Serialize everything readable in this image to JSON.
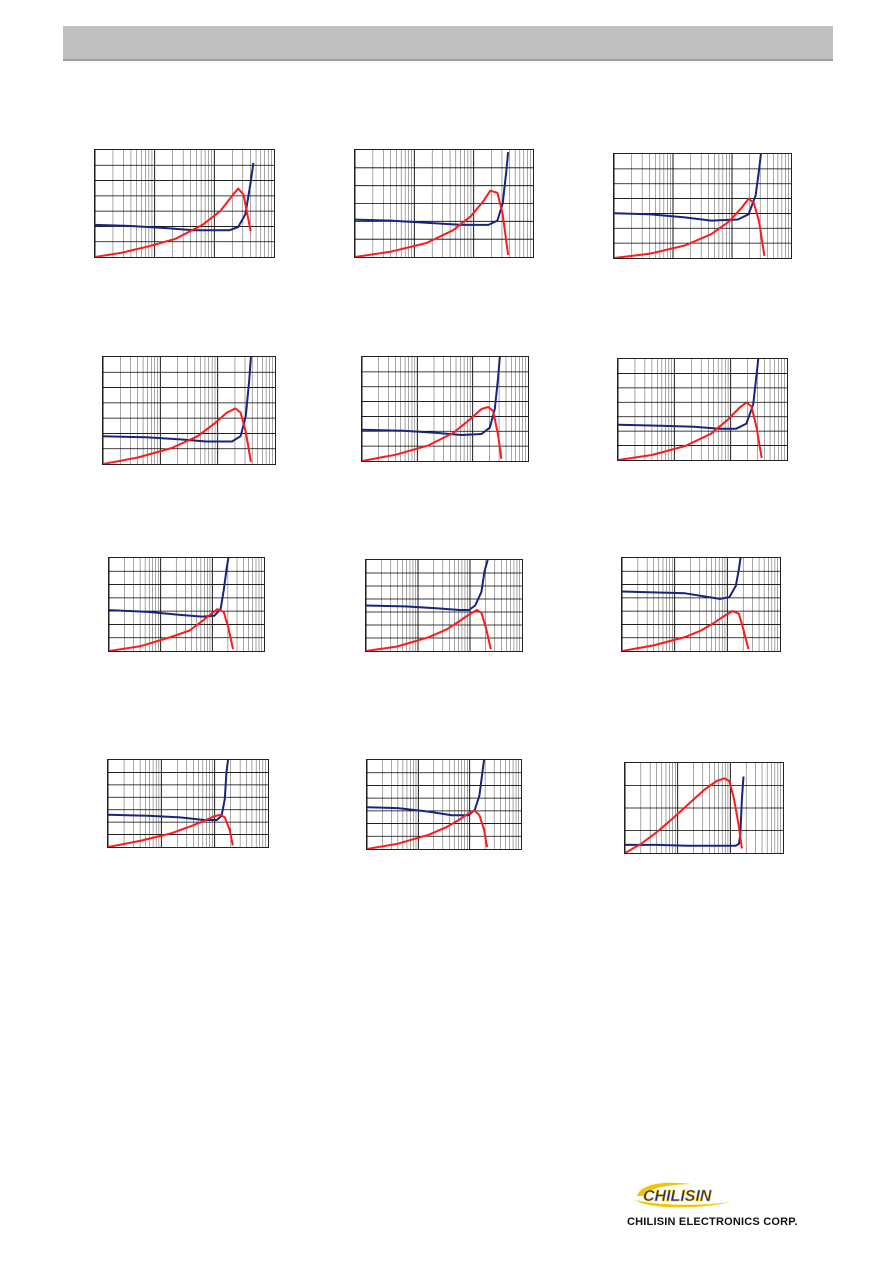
{
  "header": {
    "title": ""
  },
  "company": {
    "name": "CHILISIN ELECTRONICS CORP.",
    "logo_word": "CHILISIN"
  },
  "colors": {
    "impedance_curve": "#1a237e",
    "q_curve": "#ff1a1a",
    "grid": "#000000",
    "header": "#c0c0c0",
    "logo_blue": "#1b2e8f",
    "logo_yellow": "#f5c400"
  },
  "chart_data": [
    {
      "type": "line",
      "xscale": "log",
      "xlim": [
        0,
        1
      ],
      "ylim": [
        0,
        1
      ],
      "grid": true,
      "legend": "none",
      "title": "",
      "xlabel": "",
      "ylabel": "",
      "series": [
        {
          "name": "",
          "color": "#1a237e",
          "x": [
            0,
            0.2,
            0.4,
            0.55,
            0.75,
            0.8,
            0.84,
            0.87,
            0.885
          ],
          "y": [
            0.3,
            0.29,
            0.27,
            0.25,
            0.25,
            0.28,
            0.4,
            0.7,
            0.88
          ]
        },
        {
          "name": "",
          "color": "#ff1a1a",
          "x": [
            0,
            0.15,
            0.3,
            0.45,
            0.6,
            0.7,
            0.78,
            0.8,
            0.83,
            0.87
          ],
          "y": [
            0,
            0.04,
            0.1,
            0.17,
            0.3,
            0.43,
            0.6,
            0.64,
            0.58,
            0.24
          ]
        }
      ]
    },
    {
      "type": "line",
      "xscale": "log",
      "xlim": [
        0,
        1
      ],
      "ylim": [
        0,
        1
      ],
      "grid": true,
      "legend": "none",
      "title": "",
      "xlabel": "",
      "ylabel": "",
      "series": [
        {
          "name": "",
          "color": "#1a237e",
          "x": [
            0,
            0.2,
            0.4,
            0.6,
            0.75,
            0.8,
            0.83,
            0.85,
            0.86
          ],
          "y": [
            0.35,
            0.34,
            0.32,
            0.3,
            0.3,
            0.34,
            0.5,
            0.8,
            0.98
          ]
        },
        {
          "name": "",
          "color": "#ff1a1a",
          "x": [
            0,
            0.2,
            0.4,
            0.55,
            0.65,
            0.72,
            0.76,
            0.8,
            0.83,
            0.86
          ],
          "y": [
            0,
            0.05,
            0.13,
            0.25,
            0.38,
            0.52,
            0.62,
            0.6,
            0.4,
            0.02
          ]
        }
      ]
    },
    {
      "type": "line",
      "xscale": "log",
      "xlim": [
        0,
        1
      ],
      "ylim": [
        0,
        1
      ],
      "grid": true,
      "legend": "none",
      "title": "",
      "xlabel": "",
      "ylabel": "",
      "series": [
        {
          "name": "",
          "color": "#1a237e",
          "x": [
            0,
            0.2,
            0.4,
            0.55,
            0.7,
            0.76,
            0.8,
            0.82,
            0.83
          ],
          "y": [
            0.43,
            0.42,
            0.39,
            0.36,
            0.37,
            0.42,
            0.6,
            0.85,
            1.0
          ]
        },
        {
          "name": "",
          "color": "#ff1a1a",
          "x": [
            0,
            0.2,
            0.4,
            0.55,
            0.65,
            0.72,
            0.76,
            0.79,
            0.82,
            0.85
          ],
          "y": [
            0,
            0.04,
            0.12,
            0.23,
            0.35,
            0.48,
            0.57,
            0.53,
            0.35,
            0.02
          ]
        }
      ]
    },
    {
      "type": "line",
      "xscale": "log",
      "xlim": [
        0,
        1
      ],
      "ylim": [
        0,
        1
      ],
      "grid": true,
      "legend": "none",
      "title": "",
      "xlabel": "",
      "ylabel": "",
      "series": [
        {
          "name": "",
          "color": "#1a237e",
          "x": [
            0,
            0.25,
            0.45,
            0.6,
            0.75,
            0.8,
            0.83,
            0.85,
            0.86
          ],
          "y": [
            0.26,
            0.25,
            0.23,
            0.21,
            0.21,
            0.26,
            0.45,
            0.78,
            1.0
          ]
        },
        {
          "name": "",
          "color": "#ff1a1a",
          "x": [
            0,
            0.2,
            0.4,
            0.55,
            0.65,
            0.72,
            0.77,
            0.8,
            0.83,
            0.86
          ],
          "y": [
            0,
            0.06,
            0.15,
            0.26,
            0.38,
            0.48,
            0.52,
            0.48,
            0.3,
            0.02
          ]
        }
      ]
    },
    {
      "type": "line",
      "xscale": "log",
      "xlim": [
        0,
        1
      ],
      "ylim": [
        0,
        1
      ],
      "grid": true,
      "legend": "none",
      "title": "",
      "xlabel": "",
      "ylabel": "",
      "series": [
        {
          "name": "",
          "color": "#1a237e",
          "x": [
            0,
            0.25,
            0.45,
            0.6,
            0.72,
            0.77,
            0.8,
            0.82,
            0.83
          ],
          "y": [
            0.3,
            0.29,
            0.27,
            0.25,
            0.26,
            0.32,
            0.5,
            0.8,
            1.0
          ]
        },
        {
          "name": "",
          "color": "#ff1a1a",
          "x": [
            0,
            0.2,
            0.4,
            0.55,
            0.65,
            0.72,
            0.76,
            0.79,
            0.82,
            0.84
          ],
          "y": [
            0,
            0.06,
            0.15,
            0.27,
            0.4,
            0.5,
            0.52,
            0.48,
            0.25,
            0.02
          ]
        }
      ]
    },
    {
      "type": "line",
      "xscale": "log",
      "xlim": [
        0,
        1
      ],
      "ylim": [
        0,
        1
      ],
      "grid": true,
      "legend": "none",
      "title": "",
      "xlabel": "",
      "ylabel": "",
      "series": [
        {
          "name": "",
          "color": "#1a237e",
          "x": [
            0,
            0.25,
            0.45,
            0.6,
            0.7,
            0.76,
            0.8,
            0.82,
            0.83
          ],
          "y": [
            0.35,
            0.34,
            0.33,
            0.31,
            0.31,
            0.36,
            0.55,
            0.85,
            1.0
          ]
        },
        {
          "name": "",
          "color": "#ff1a1a",
          "x": [
            0,
            0.2,
            0.4,
            0.55,
            0.65,
            0.72,
            0.76,
            0.79,
            0.82,
            0.85
          ],
          "y": [
            0,
            0.05,
            0.14,
            0.26,
            0.4,
            0.52,
            0.57,
            0.53,
            0.32,
            0.02
          ]
        }
      ]
    },
    {
      "type": "line",
      "xscale": "log",
      "xlim": [
        0,
        1
      ],
      "ylim": [
        0,
        1
      ],
      "grid": true,
      "legend": "none",
      "title": "",
      "xlabel": "",
      "ylabel": "",
      "series": [
        {
          "name": "",
          "color": "#1a237e",
          "x": [
            0,
            0.25,
            0.45,
            0.6,
            0.68,
            0.72,
            0.74,
            0.76,
            0.77
          ],
          "y": [
            0.44,
            0.42,
            0.39,
            0.37,
            0.38,
            0.45,
            0.65,
            0.9,
            1.0
          ]
        },
        {
          "name": "",
          "color": "#ff1a1a",
          "x": [
            0,
            0.2,
            0.4,
            0.52,
            0.6,
            0.66,
            0.7,
            0.74,
            0.77,
            0.8
          ],
          "y": [
            0,
            0.05,
            0.15,
            0.22,
            0.32,
            0.4,
            0.45,
            0.42,
            0.25,
            0.02
          ]
        }
      ]
    },
    {
      "type": "line",
      "xscale": "log",
      "xlim": [
        0,
        1
      ],
      "ylim": [
        0,
        1
      ],
      "grid": true,
      "legend": "none",
      "title": "",
      "xlabel": "",
      "ylabel": "",
      "series": [
        {
          "name": "",
          "color": "#1a237e",
          "x": [
            0,
            0.25,
            0.45,
            0.6,
            0.66,
            0.7,
            0.74,
            0.76,
            0.78
          ],
          "y": [
            0.5,
            0.49,
            0.47,
            0.45,
            0.45,
            0.5,
            0.65,
            0.88,
            1.0
          ]
        },
        {
          "name": "",
          "color": "#ff1a1a",
          "x": [
            0,
            0.2,
            0.4,
            0.52,
            0.6,
            0.66,
            0.71,
            0.74,
            0.77,
            0.8
          ],
          "y": [
            0,
            0.05,
            0.15,
            0.24,
            0.33,
            0.4,
            0.45,
            0.42,
            0.25,
            0.02
          ]
        }
      ]
    },
    {
      "type": "line",
      "xscale": "log",
      "xlim": [
        0,
        1
      ],
      "ylim": [
        0,
        1
      ],
      "grid": true,
      "legend": "none",
      "title": "",
      "xlabel": "",
      "ylabel": "",
      "series": [
        {
          "name": "",
          "color": "#1a237e",
          "x": [
            0,
            0.2,
            0.4,
            0.55,
            0.62,
            0.68,
            0.72,
            0.74,
            0.75
          ],
          "y": [
            0.64,
            0.63,
            0.62,
            0.58,
            0.56,
            0.58,
            0.7,
            0.88,
            1.0
          ]
        },
        {
          "name": "",
          "color": "#ff1a1a",
          "x": [
            0,
            0.2,
            0.4,
            0.5,
            0.58,
            0.65,
            0.7,
            0.74,
            0.77,
            0.8
          ],
          "y": [
            0,
            0.06,
            0.15,
            0.22,
            0.3,
            0.38,
            0.43,
            0.4,
            0.22,
            0.02
          ]
        }
      ]
    },
    {
      "type": "line",
      "xscale": "log",
      "xlim": [
        0,
        1
      ],
      "ylim": [
        0,
        1
      ],
      "grid": true,
      "legend": "none",
      "title": "",
      "xlabel": "",
      "ylabel": "",
      "series": [
        {
          "name": "",
          "color": "#1a237e",
          "x": [
            0,
            0.25,
            0.45,
            0.6,
            0.68,
            0.71,
            0.73,
            0.74,
            0.75
          ],
          "y": [
            0.37,
            0.36,
            0.34,
            0.31,
            0.31,
            0.36,
            0.55,
            0.85,
            1.0
          ]
        },
        {
          "name": "",
          "color": "#ff1a1a",
          "x": [
            0,
            0.2,
            0.4,
            0.52,
            0.6,
            0.66,
            0.7,
            0.73,
            0.76,
            0.78
          ],
          "y": [
            0,
            0.07,
            0.16,
            0.24,
            0.3,
            0.35,
            0.37,
            0.34,
            0.2,
            0.02
          ]
        }
      ]
    },
    {
      "type": "line",
      "xscale": "log",
      "xlim": [
        0,
        1
      ],
      "ylim": [
        0,
        1
      ],
      "grid": true,
      "legend": "none",
      "title": "",
      "xlabel": "",
      "ylabel": "",
      "series": [
        {
          "name": "",
          "color": "#1a237e",
          "x": [
            0,
            0.2,
            0.4,
            0.55,
            0.66,
            0.7,
            0.73,
            0.75,
            0.76
          ],
          "y": [
            0.47,
            0.46,
            0.42,
            0.38,
            0.38,
            0.44,
            0.6,
            0.87,
            1.0
          ]
        },
        {
          "name": "",
          "color": "#ff1a1a",
          "x": [
            0,
            0.2,
            0.4,
            0.52,
            0.6,
            0.66,
            0.7,
            0.73,
            0.76,
            0.78
          ],
          "y": [
            0,
            0.06,
            0.16,
            0.25,
            0.33,
            0.4,
            0.43,
            0.38,
            0.22,
            0.02
          ]
        }
      ]
    },
    {
      "type": "line",
      "xscale": "log",
      "xlim": [
        0,
        1
      ],
      "ylim": [
        0,
        1
      ],
      "grid": true,
      "legend": "none",
      "title": "",
      "xlabel": "",
      "ylabel": "",
      "series": [
        {
          "name": "",
          "color": "#1a237e",
          "x": [
            0,
            0.2,
            0.4,
            0.6,
            0.7,
            0.72,
            0.73,
            0.74,
            0.75
          ],
          "y": [
            0.09,
            0.09,
            0.08,
            0.08,
            0.08,
            0.1,
            0.2,
            0.6,
            0.85
          ]
        },
        {
          "name": "",
          "color": "#ff1a1a",
          "x": [
            0,
            0.1,
            0.2,
            0.3,
            0.4,
            0.5,
            0.58,
            0.63,
            0.66,
            0.69,
            0.72,
            0.74
          ],
          "y": [
            0,
            0.1,
            0.23,
            0.38,
            0.54,
            0.7,
            0.8,
            0.83,
            0.8,
            0.6,
            0.3,
            0.05
          ]
        }
      ]
    }
  ]
}
